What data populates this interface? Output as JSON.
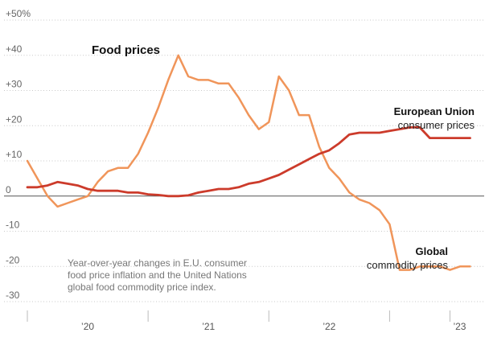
{
  "chart_data": {
    "type": "line",
    "title": "Food prices",
    "y_ticks": [
      50,
      40,
      30,
      20,
      10,
      0,
      -10,
      -20,
      -30
    ],
    "y_tick_labels": [
      "+50%",
      "+40",
      "+30",
      "+20",
      "+10",
      "0",
      "-10",
      "-20",
      "-30"
    ],
    "ylim": [
      -30,
      50
    ],
    "x_range": [
      2019.5,
      2023.25
    ],
    "x_tick_marks": [
      2019.5,
      2020.5,
      2021.5,
      2022.5,
      2023.0
    ],
    "x_tick_labels": [
      {
        "label": "’20",
        "x": 2020.0
      },
      {
        "label": "’21",
        "x": 2021.0
      },
      {
        "label": "’22",
        "x": 2022.0
      },
      {
        "label": "’23",
        "x": 2023.08
      }
    ],
    "grid": true,
    "note_lines": [
      "Year-over-year changes in E.U. consumer",
      "food price inflation and the United Nations",
      "global food commodity price index."
    ],
    "series": [
      {
        "name": "Global commodity prices",
        "label_bold": "Global",
        "label_sub": "commodity prices",
        "color": "#f0955a",
        "x": [
          2019.5,
          2019.583,
          2019.667,
          2019.75,
          2019.833,
          2019.917,
          2020.0,
          2020.083,
          2020.167,
          2020.25,
          2020.333,
          2020.417,
          2020.5,
          2020.583,
          2020.667,
          2020.75,
          2020.833,
          2020.917,
          2021.0,
          2021.083,
          2021.167,
          2021.25,
          2021.333,
          2021.417,
          2021.5,
          2021.583,
          2021.667,
          2021.75,
          2021.833,
          2021.917,
          2022.0,
          2022.083,
          2022.167,
          2022.25,
          2022.333,
          2022.417,
          2022.5,
          2022.583,
          2022.667,
          2022.75,
          2022.833,
          2022.917,
          2023.0,
          2023.083,
          2023.167
        ],
        "values": [
          10,
          5,
          0,
          -3,
          -2,
          -1,
          0,
          4,
          7,
          8,
          8,
          12,
          18,
          25,
          33,
          40,
          34,
          33,
          33,
          32,
          32,
          28,
          23,
          19,
          21,
          34,
          30,
          23,
          23,
          14,
          8,
          5,
          1,
          -1,
          -2,
          -4,
          -8,
          -21,
          -21,
          -20,
          -20,
          -20,
          -21,
          -20,
          -20
        ]
      },
      {
        "name": "European Union consumer prices",
        "label_bold": "European Union",
        "label_sub": "consumer prices",
        "color": "#cc3b2b",
        "x": [
          2019.5,
          2019.583,
          2019.667,
          2019.75,
          2019.833,
          2019.917,
          2020.0,
          2020.083,
          2020.167,
          2020.25,
          2020.333,
          2020.417,
          2020.5,
          2020.583,
          2020.667,
          2020.75,
          2020.833,
          2020.917,
          2021.0,
          2021.083,
          2021.167,
          2021.25,
          2021.333,
          2021.417,
          2021.5,
          2021.583,
          2021.667,
          2021.75,
          2021.833,
          2021.917,
          2022.0,
          2022.083,
          2022.167,
          2022.25,
          2022.333,
          2022.417,
          2022.5,
          2022.583,
          2022.667,
          2022.75,
          2022.833,
          2022.917,
          2023.0,
          2023.083,
          2023.167
        ],
        "values": [
          2.5,
          2.5,
          3,
          4,
          3.5,
          3,
          2,
          1.5,
          1.5,
          1.5,
          1,
          1,
          0.5,
          0.3,
          0,
          0,
          0.2,
          1,
          1.5,
          2,
          2,
          2.5,
          3.5,
          4,
          5,
          6,
          7.5,
          9,
          10.5,
          12,
          13,
          15,
          17.5,
          18,
          18,
          18,
          18.5,
          19,
          19.5,
          19.5,
          16.5,
          16.5,
          16.5,
          16.5,
          16.5
        ]
      }
    ]
  }
}
